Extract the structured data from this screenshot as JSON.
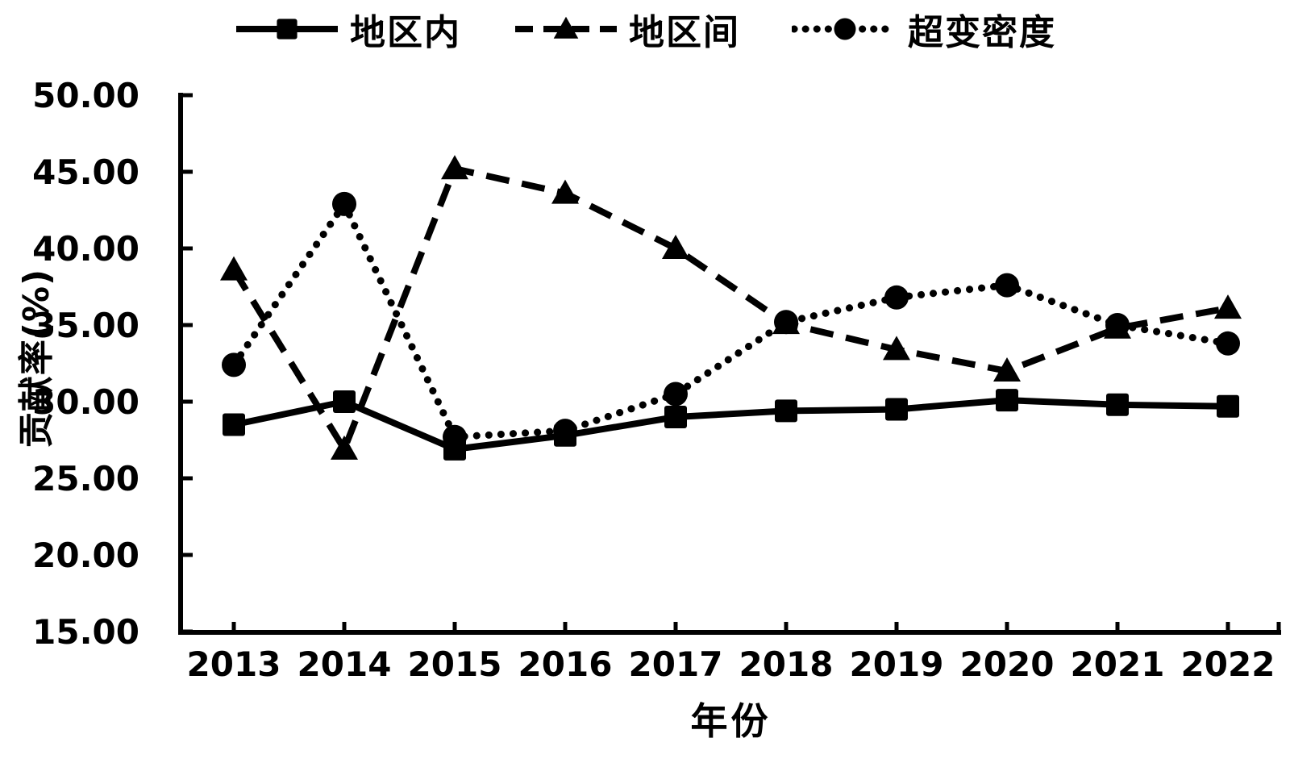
{
  "chart_data": {
    "type": "line",
    "title": "",
    "xlabel": "年份",
    "ylabel": "贡献率(%)",
    "categories": [
      "2013",
      "2014",
      "2015",
      "2016",
      "2017",
      "2018",
      "2019",
      "2020",
      "2021",
      "2022"
    ],
    "series": [
      {
        "name": "地区内",
        "marker": "square",
        "linestyle": "solid",
        "values": [
          28.5,
          30.0,
          26.9,
          27.8,
          29.0,
          29.4,
          29.5,
          30.1,
          29.8,
          29.7
        ]
      },
      {
        "name": "地区间",
        "marker": "triangle",
        "linestyle": "dashed",
        "values": [
          38.6,
          26.9,
          45.2,
          43.6,
          40.0,
          35.1,
          33.4,
          32.0,
          34.8,
          36.1
        ]
      },
      {
        "name": "超变密度",
        "marker": "circle",
        "linestyle": "dotted",
        "values": [
          32.4,
          42.9,
          27.7,
          28.1,
          30.5,
          35.2,
          36.8,
          37.6,
          35.0,
          33.8
        ]
      }
    ],
    "ylim": [
      15,
      50
    ],
    "y_ticks": [
      50,
      45,
      40,
      35,
      30,
      25,
      20,
      15
    ],
    "ytick_labels": [
      "50.00",
      "45.00",
      "40.00",
      "35.00",
      "30.00",
      "25.00",
      "20.00",
      "15.00"
    ],
    "grid": false,
    "legend_position": "top",
    "line_color": "#000000",
    "background_color": "#ffffff"
  }
}
